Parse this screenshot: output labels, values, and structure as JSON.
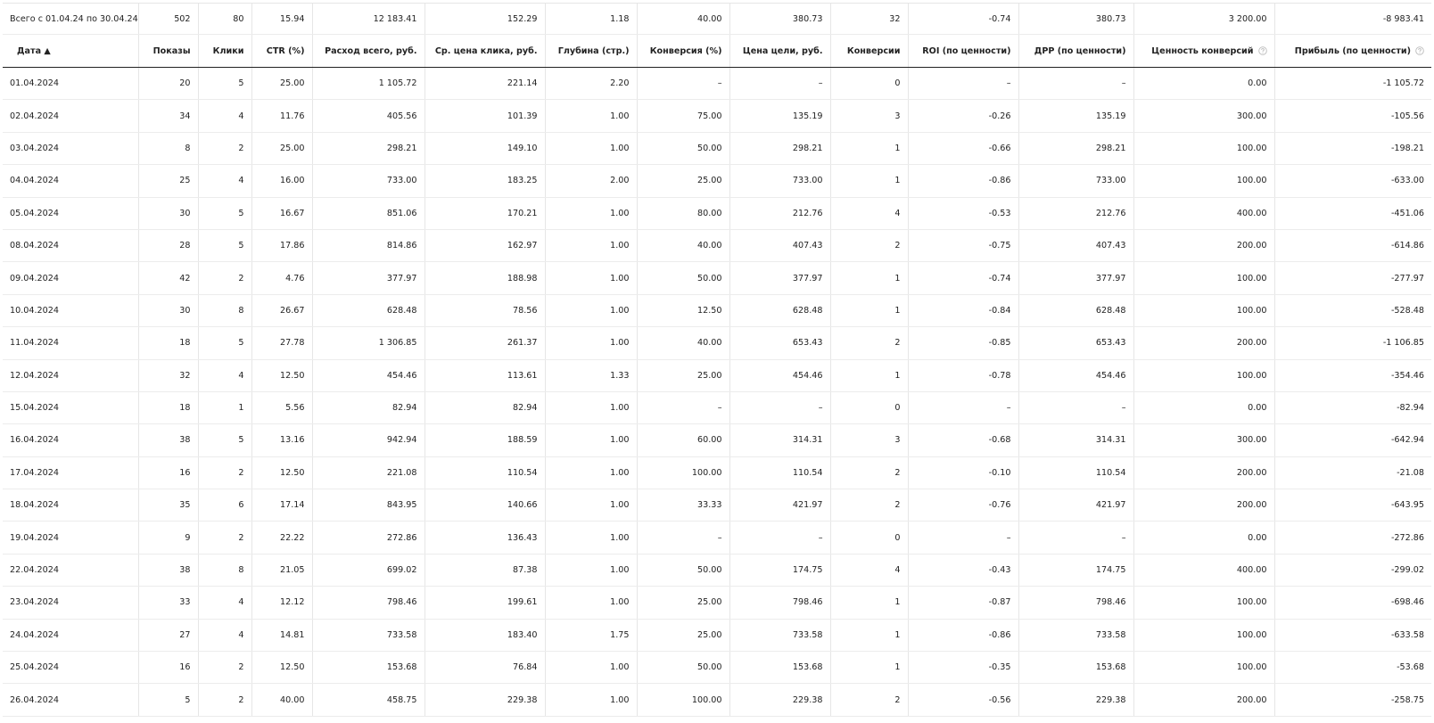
{
  "table": {
    "totals": [
      "Всего с 01.04.24 по 30.04.24",
      "502",
      "80",
      "15.94",
      "12 183.41",
      "152.29",
      "1.18",
      "40.00",
      "380.73",
      "32",
      "-0.74",
      "380.73",
      "3 200.00",
      "-8 983.41"
    ],
    "header": [
      "Дата ▲",
      "Показы",
      "Клики",
      "CTR (%)",
      "Расход всего, руб.",
      "Ср. цена клика, руб.",
      "Глубина (стр.)",
      "Конверсия (%)",
      "Цена цели, руб.",
      "Конверсии",
      "ROI (по ценности)",
      "ДРР (по ценности)",
      "Ценность конверсий",
      "Прибыль (по ценности)"
    ],
    "rows": [
      [
        "01.04.2024",
        "20",
        "5",
        "25.00",
        "1 105.72",
        "221.14",
        "2.20",
        "–",
        "–",
        "0",
        "–",
        "–",
        "0.00",
        "-1 105.72"
      ],
      [
        "02.04.2024",
        "34",
        "4",
        "11.76",
        "405.56",
        "101.39",
        "1.00",
        "75.00",
        "135.19",
        "3",
        "-0.26",
        "135.19",
        "300.00",
        "-105.56"
      ],
      [
        "03.04.2024",
        "8",
        "2",
        "25.00",
        "298.21",
        "149.10",
        "1.00",
        "50.00",
        "298.21",
        "1",
        "-0.66",
        "298.21",
        "100.00",
        "-198.21"
      ],
      [
        "04.04.2024",
        "25",
        "4",
        "16.00",
        "733.00",
        "183.25",
        "2.00",
        "25.00",
        "733.00",
        "1",
        "-0.86",
        "733.00",
        "100.00",
        "-633.00"
      ],
      [
        "05.04.2024",
        "30",
        "5",
        "16.67",
        "851.06",
        "170.21",
        "1.00",
        "80.00",
        "212.76",
        "4",
        "-0.53",
        "212.76",
        "400.00",
        "-451.06"
      ],
      [
        "08.04.2024",
        "28",
        "5",
        "17.86",
        "814.86",
        "162.97",
        "1.00",
        "40.00",
        "407.43",
        "2",
        "-0.75",
        "407.43",
        "200.00",
        "-614.86"
      ],
      [
        "09.04.2024",
        "42",
        "2",
        "4.76",
        "377.97",
        "188.98",
        "1.00",
        "50.00",
        "377.97",
        "1",
        "-0.74",
        "377.97",
        "100.00",
        "-277.97"
      ],
      [
        "10.04.2024",
        "30",
        "8",
        "26.67",
        "628.48",
        "78.56",
        "1.00",
        "12.50",
        "628.48",
        "1",
        "-0.84",
        "628.48",
        "100.00",
        "-528.48"
      ],
      [
        "11.04.2024",
        "18",
        "5",
        "27.78",
        "1 306.85",
        "261.37",
        "1.00",
        "40.00",
        "653.43",
        "2",
        "-0.85",
        "653.43",
        "200.00",
        "-1 106.85"
      ],
      [
        "12.04.2024",
        "32",
        "4",
        "12.50",
        "454.46",
        "113.61",
        "1.33",
        "25.00",
        "454.46",
        "1",
        "-0.78",
        "454.46",
        "100.00",
        "-354.46"
      ],
      [
        "15.04.2024",
        "18",
        "1",
        "5.56",
        "82.94",
        "82.94",
        "1.00",
        "–",
        "–",
        "0",
        "–",
        "–",
        "0.00",
        "-82.94"
      ],
      [
        "16.04.2024",
        "38",
        "5",
        "13.16",
        "942.94",
        "188.59",
        "1.00",
        "60.00",
        "314.31",
        "3",
        "-0.68",
        "314.31",
        "300.00",
        "-642.94"
      ],
      [
        "17.04.2024",
        "16",
        "2",
        "12.50",
        "221.08",
        "110.54",
        "1.00",
        "100.00",
        "110.54",
        "2",
        "-0.10",
        "110.54",
        "200.00",
        "-21.08"
      ],
      [
        "18.04.2024",
        "35",
        "6",
        "17.14",
        "843.95",
        "140.66",
        "1.00",
        "33.33",
        "421.97",
        "2",
        "-0.76",
        "421.97",
        "200.00",
        "-643.95"
      ],
      [
        "19.04.2024",
        "9",
        "2",
        "22.22",
        "272.86",
        "136.43",
        "1.00",
        "–",
        "–",
        "0",
        "–",
        "–",
        "0.00",
        "-272.86"
      ],
      [
        "22.04.2024",
        "38",
        "8",
        "21.05",
        "699.02",
        "87.38",
        "1.00",
        "50.00",
        "174.75",
        "4",
        "-0.43",
        "174.75",
        "400.00",
        "-299.02"
      ],
      [
        "23.04.2024",
        "33",
        "4",
        "12.12",
        "798.46",
        "199.61",
        "1.00",
        "25.00",
        "798.46",
        "1",
        "-0.87",
        "798.46",
        "100.00",
        "-698.46"
      ],
      [
        "24.04.2024",
        "27",
        "4",
        "14.81",
        "733.58",
        "183.40",
        "1.75",
        "25.00",
        "733.58",
        "1",
        "-0.86",
        "733.58",
        "100.00",
        "-633.58"
      ],
      [
        "25.04.2024",
        "16",
        "2",
        "12.50",
        "153.68",
        "76.84",
        "1.00",
        "50.00",
        "153.68",
        "1",
        "-0.35",
        "153.68",
        "100.00",
        "-53.68"
      ],
      [
        "26.04.2024",
        "5",
        "2",
        "40.00",
        "458.75",
        "229.38",
        "1.00",
        "100.00",
        "229.38",
        "2",
        "-0.56",
        "229.38",
        "200.00",
        "-258.75"
      ]
    ]
  }
}
